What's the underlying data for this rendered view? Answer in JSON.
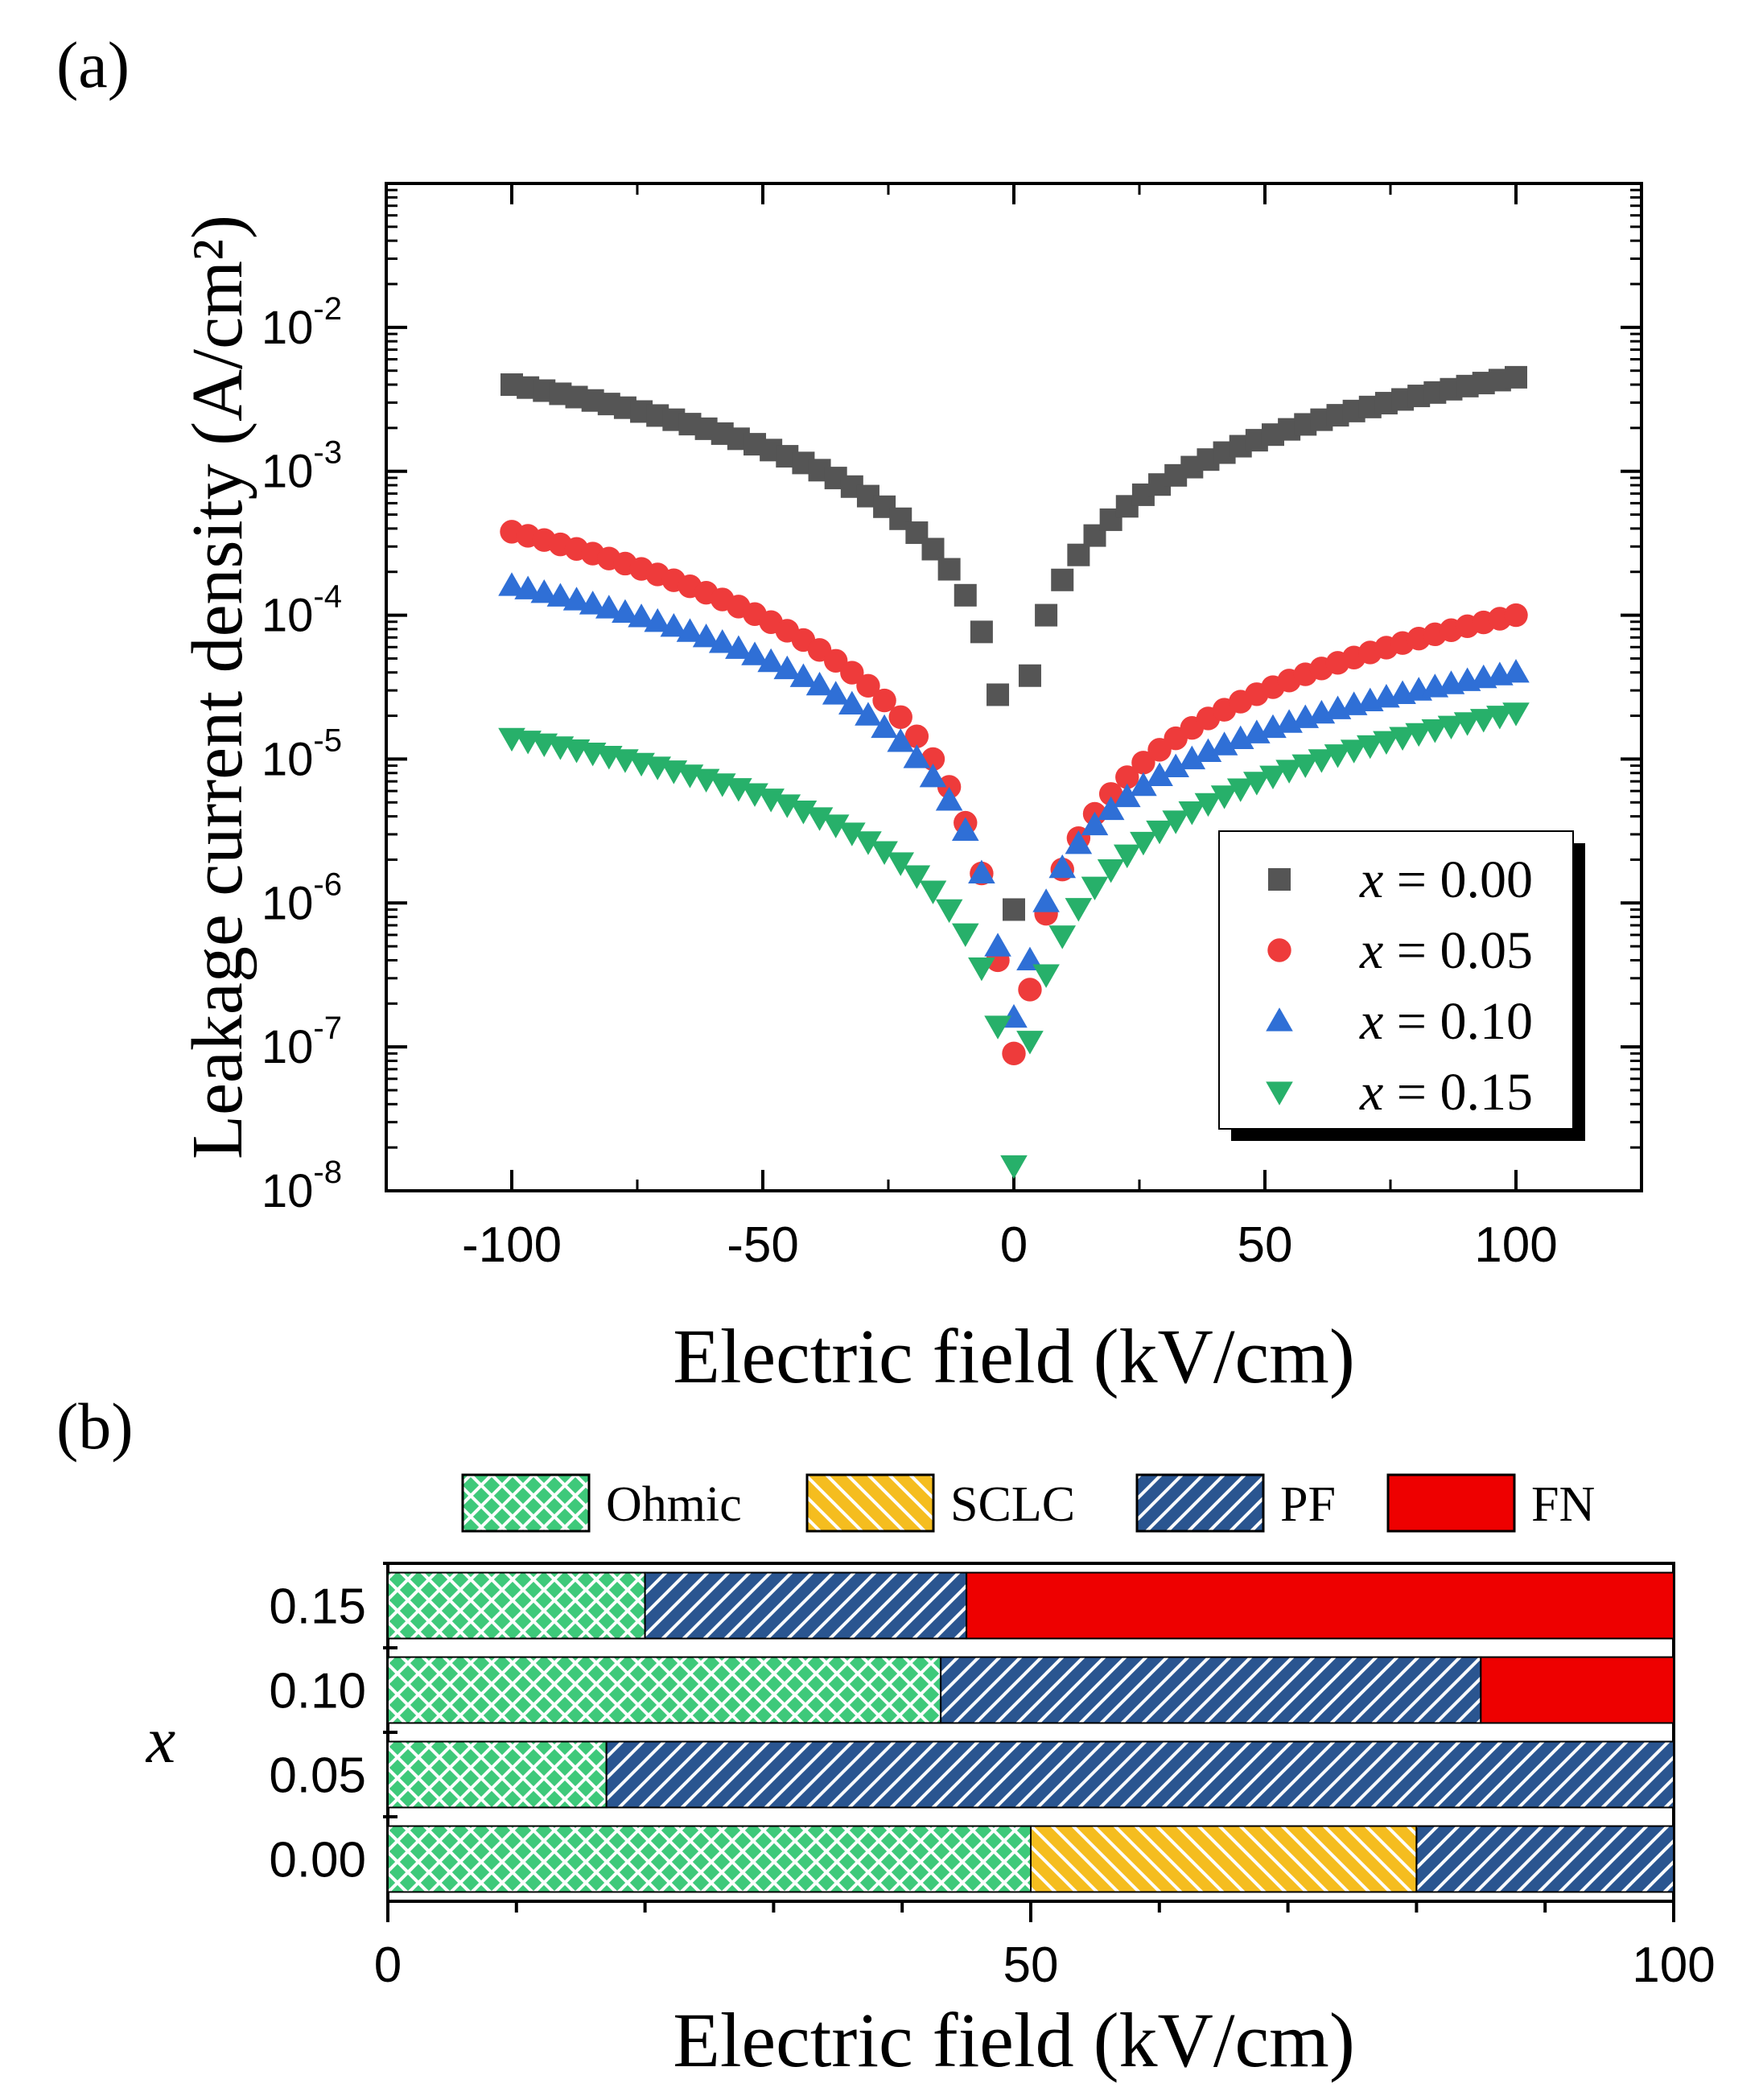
{
  "panel_a_label": "(a)",
  "panel_b_label": "(b)",
  "chart_data": [
    {
      "type": "scatter",
      "panel": "(a)",
      "xlabel": "Electric field (kV/cm)",
      "ylabel": "Leakage current density (A/cm²)",
      "xlim": [
        -125,
        125
      ],
      "ylim": [
        1e-08,
        0.1
      ],
      "yscale": "log",
      "xticks": [
        "-100",
        "-50",
        "0",
        "50",
        "100"
      ],
      "yticks": [
        {
          "base": "10",
          "exp": "-8",
          "value": 1e-08
        },
        {
          "base": "10",
          "exp": "-7",
          "value": 1e-07
        },
        {
          "base": "10",
          "exp": "-6",
          "value": 1e-06
        },
        {
          "base": "10",
          "exp": "-5",
          "value": 1e-05
        },
        {
          "base": "10",
          "exp": "-4",
          "value": 0.0001
        },
        {
          "base": "10",
          "exp": "-3",
          "value": 0.001
        },
        {
          "base": "10",
          "exp": "-2",
          "value": 0.01
        }
      ],
      "legend_position": "bottom-right",
      "series": [
        {
          "name": "x = 0.00",
          "var": "x",
          "eq": " = 0.00",
          "marker": "square",
          "color": "#555555",
          "x_end": 100,
          "y_end_neg": 0.004,
          "y_end_pos": 0.0045,
          "y_min_neg": 2.8e-05,
          "y_min_pos": 3.8e-05,
          "y_at_zero": 9e-07
        },
        {
          "name": "x = 0.05",
          "var": "x",
          "eq": " = 0.05",
          "marker": "circle",
          "color": "#ee3b3b",
          "x_end": 100,
          "y_end_neg": 0.00038,
          "y_end_pos": 0.0001,
          "y_min_neg": 4e-07,
          "y_min_pos": 2.5e-07,
          "y_at_zero": 9e-08
        },
        {
          "name": "x = 0.10",
          "var": "x",
          "eq": " = 0.10",
          "marker": "triangle-up",
          "color": "#2f6fd6",
          "x_end": 100,
          "y_end_neg": 0.00016,
          "y_end_pos": 4e-05,
          "y_min_neg": 5e-07,
          "y_min_pos": 4e-07,
          "y_at_zero": 1.6e-07
        },
        {
          "name": "x = 0.15",
          "var": "x",
          "eq": " = 0.15",
          "marker": "triangle-down",
          "color": "#27b06a",
          "x_end": 100,
          "y_end_neg": 1.4e-05,
          "y_end_pos": 2.1e-05,
          "y_min_neg": 1.4e-07,
          "y_min_pos": 1.1e-07,
          "y_at_zero": 1.5e-08
        }
      ]
    },
    {
      "type": "bar",
      "orientation": "horizontal",
      "stacked": true,
      "panel": "(b)",
      "xlabel": "Electric field (kV/cm)",
      "ylabel": "x",
      "xlim": [
        0,
        100
      ],
      "xticks": [
        "0",
        "50",
        "100"
      ],
      "categories": [
        "0.00",
        "0.05",
        "0.10",
        "0.15"
      ],
      "legend_position": "top",
      "mechanisms": [
        {
          "name": "Ohmic",
          "pattern": "crosshatch",
          "color": "#3ec97a"
        },
        {
          "name": "SCLC",
          "pattern": "backdiag",
          "color": "#f5bd1f"
        },
        {
          "name": "PF",
          "pattern": "fwddiag",
          "color": "#2a5590"
        },
        {
          "name": "FN",
          "pattern": "solid",
          "color": "#ee0000"
        }
      ],
      "series": [
        {
          "name": "Ohmic",
          "values": [
            50,
            17,
            43,
            20
          ]
        },
        {
          "name": "SCLC",
          "values": [
            30,
            0,
            0,
            0
          ]
        },
        {
          "name": "PF",
          "values": [
            20,
            83,
            42,
            25
          ]
        },
        {
          "name": "FN",
          "values": [
            0,
            0,
            15,
            55
          ]
        }
      ]
    }
  ]
}
